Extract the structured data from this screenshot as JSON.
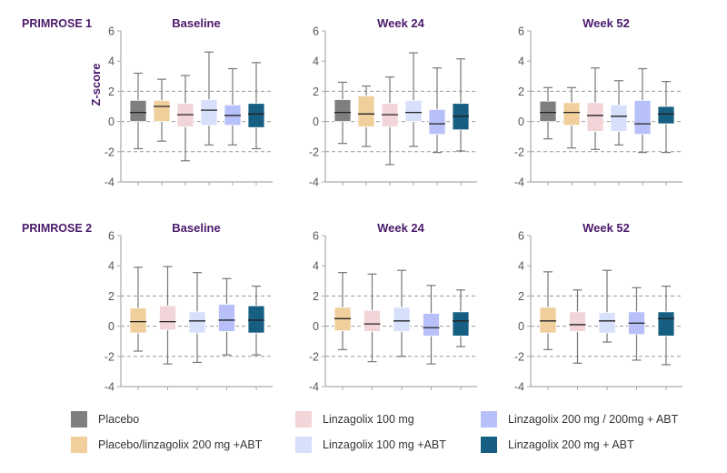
{
  "chart_data": {
    "type": "box",
    "ylabel": "Z-score",
    "ylim": [
      -4,
      6
    ],
    "yticks": [
      -4,
      -2,
      0,
      2,
      4,
      6
    ],
    "reference_lines": [
      -2,
      0,
      2
    ],
    "groups": [
      {
        "name": "Placebo",
        "color": "#7f7f7f"
      },
      {
        "name": "Placebo/linzagolix 200 mg +ABT",
        "color": "#f0cf9c"
      },
      {
        "name": "Linzagolix 100 mg",
        "color": "#f2d5d9"
      },
      {
        "name": "Linzagolix 100 mg +ABT",
        "color": "#d6e0fb"
      },
      {
        "name": "Linzagolix 200 mg / 200mg + ABT",
        "color": "#b7c0f8"
      },
      {
        "name": "Linzagolix 200 mg + ABT",
        "color": "#175f82"
      }
    ],
    "studies": [
      {
        "label": "PRIMROSE 1",
        "panels": [
          {
            "title": "Baseline",
            "boxes": [
              {
                "group": 0,
                "min": -1.8,
                "q1": 0.0,
                "median": 0.6,
                "q3": 1.4,
                "max": 3.2
              },
              {
                "group": 1,
                "min": -1.3,
                "q1": 0.0,
                "median": 1.0,
                "q3": 1.4,
                "max": 2.8
              },
              {
                "group": 2,
                "min": -2.6,
                "q1": -0.35,
                "median": 0.45,
                "q3": 1.2,
                "max": 3.05
              },
              {
                "group": 3,
                "min": -1.55,
                "q1": -0.25,
                "median": 0.75,
                "q3": 1.45,
                "max": 4.6
              },
              {
                "group": 4,
                "min": -1.55,
                "q1": -0.25,
                "median": 0.4,
                "q3": 1.1,
                "max": 3.5
              },
              {
                "group": 5,
                "min": -1.8,
                "q1": -0.4,
                "median": 0.5,
                "q3": 1.2,
                "max": 3.9
              }
            ]
          },
          {
            "title": "Week 24",
            "boxes": [
              {
                "group": 0,
                "min": -1.45,
                "q1": 0.0,
                "median": 0.6,
                "q3": 1.45,
                "max": 2.6
              },
              {
                "group": 1,
                "min": -1.65,
                "q1": -0.35,
                "median": 0.5,
                "q3": 1.7,
                "max": 2.35
              },
              {
                "group": 2,
                "min": -2.85,
                "q1": -0.35,
                "median": 0.45,
                "q3": 1.2,
                "max": 2.95
              },
              {
                "group": 3,
                "min": -1.65,
                "q1": 0.0,
                "median": 0.6,
                "q3": 1.4,
                "max": 4.55
              },
              {
                "group": 4,
                "min": -2.05,
                "q1": -0.85,
                "median": -0.15,
                "q3": 0.8,
                "max": 3.55
              },
              {
                "group": 5,
                "min": -1.95,
                "q1": -0.55,
                "median": 0.35,
                "q3": 1.2,
                "max": 4.15
              }
            ]
          },
          {
            "title": "Week 52",
            "boxes": [
              {
                "group": 0,
                "min": -1.15,
                "q1": 0.0,
                "median": 0.6,
                "q3": 1.35,
                "max": 2.25
              },
              {
                "group": 1,
                "min": -1.75,
                "q1": -0.25,
                "median": 0.6,
                "q3": 1.25,
                "max": 2.25
              },
              {
                "group": 2,
                "min": -1.85,
                "q1": -0.65,
                "median": 0.4,
                "q3": 1.25,
                "max": 3.55
              },
              {
                "group": 3,
                "min": -1.55,
                "q1": -0.65,
                "median": 0.35,
                "q3": 1.1,
                "max": 2.7
              },
              {
                "group": 4,
                "min": -2.05,
                "q1": -0.85,
                "median": -0.15,
                "q3": 1.4,
                "max": 3.5
              },
              {
                "group": 5,
                "min": -2.05,
                "q1": -0.15,
                "median": 0.5,
                "q3": 1.0,
                "max": 2.65
              }
            ]
          }
        ]
      },
      {
        "label": "PRIMROSE 2",
        "panels": [
          {
            "title": "Baseline",
            "boxes": [
              {
                "group": 1,
                "min": -1.65,
                "q1": -0.45,
                "median": 0.3,
                "q3": 1.2,
                "max": 3.9
              },
              {
                "group": 2,
                "min": -2.5,
                "q1": -0.25,
                "median": 0.3,
                "q3": 1.35,
                "max": 3.95
              },
              {
                "group": 3,
                "min": -2.4,
                "q1": -0.45,
                "median": 0.35,
                "q3": 0.95,
                "max": 3.55
              },
              {
                "group": 4,
                "min": -1.9,
                "q1": -0.35,
                "median": 0.4,
                "q3": 1.45,
                "max": 3.15
              },
              {
                "group": 5,
                "min": -1.9,
                "q1": -0.45,
                "median": 0.4,
                "q3": 1.35,
                "max": 2.65
              }
            ]
          },
          {
            "title": "Week 24",
            "boxes": [
              {
                "group": 1,
                "min": -1.55,
                "q1": -0.3,
                "median": 0.5,
                "q3": 1.25,
                "max": 3.55
              },
              {
                "group": 2,
                "min": -2.35,
                "q1": -0.35,
                "median": 0.15,
                "q3": 1.05,
                "max": 3.45
              },
              {
                "group": 3,
                "min": -2.0,
                "q1": -0.35,
                "median": 0.35,
                "q3": 1.25,
                "max": 3.7
              },
              {
                "group": 4,
                "min": -2.5,
                "q1": -0.65,
                "median": -0.1,
                "q3": 0.85,
                "max": 2.7
              },
              {
                "group": 5,
                "min": -1.35,
                "q1": -0.65,
                "median": 0.35,
                "q3": 0.95,
                "max": 2.4
              }
            ]
          },
          {
            "title": "Week 52",
            "boxes": [
              {
                "group": 1,
                "min": -1.55,
                "q1": -0.45,
                "median": 0.35,
                "q3": 1.25,
                "max": 3.6
              },
              {
                "group": 2,
                "min": -2.45,
                "q1": -0.35,
                "median": 0.1,
                "q3": 0.95,
                "max": 2.4
              },
              {
                "group": 3,
                "min": -1.05,
                "q1": -0.45,
                "median": 0.35,
                "q3": 0.9,
                "max": 3.7
              },
              {
                "group": 4,
                "min": -2.25,
                "q1": -0.55,
                "median": 0.2,
                "q3": 0.95,
                "max": 2.55
              },
              {
                "group": 5,
                "min": -2.55,
                "q1": -0.65,
                "median": 0.5,
                "q3": 0.95,
                "max": 2.65
              }
            ]
          }
        ]
      }
    ],
    "legend_position": "bottom"
  }
}
